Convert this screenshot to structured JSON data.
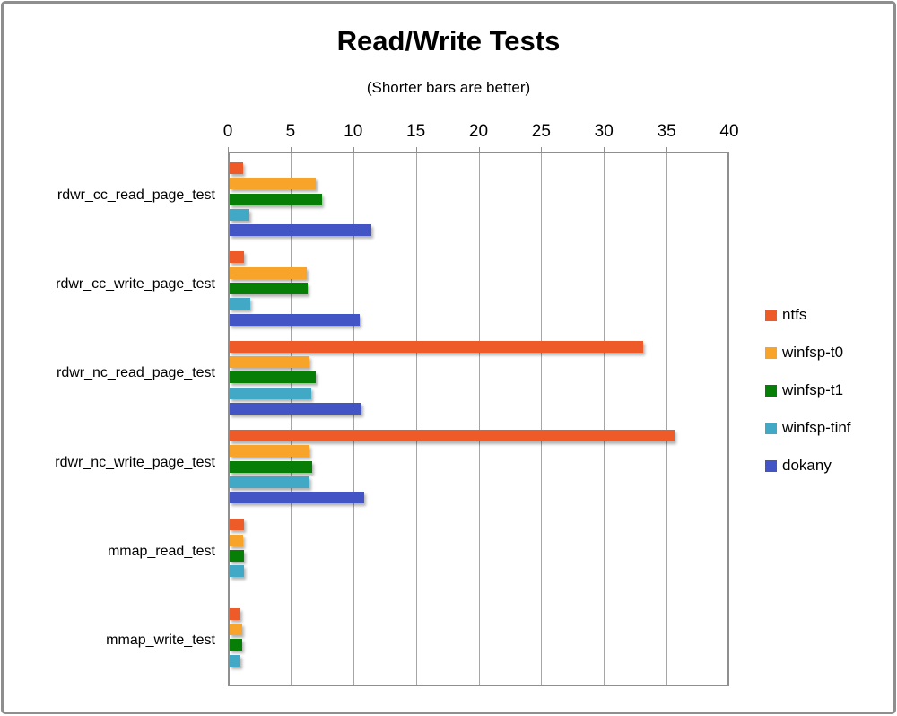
{
  "chart_data": {
    "type": "bar",
    "orientation": "horizontal",
    "title": "Read/Write Tests",
    "subtitle": "(Shorter bars are better)",
    "axis": {
      "position": "top",
      "min": 0,
      "max": 40,
      "tick_labels": [
        "0",
        "5",
        "10",
        "15",
        "20",
        "25",
        "30",
        "35",
        "40"
      ],
      "tick_values": [
        0,
        5,
        10,
        15,
        20,
        25,
        30,
        35,
        40
      ],
      "grid": true
    },
    "categories": [
      "rdwr_cc_read_page_test",
      "rdwr_cc_write_page_test",
      "rdwr_nc_read_page_test",
      "rdwr_nc_write_page_test",
      "mmap_read_test",
      "mmap_write_test"
    ],
    "series": [
      {
        "name": "ntfs",
        "color": "#ef5b28",
        "values": [
          1.05,
          1.15,
          33.0,
          35.5,
          1.15,
          0.85
        ]
      },
      {
        "name": "winfsp-t0",
        "color": "#f8a42a",
        "values": [
          6.9,
          6.15,
          6.4,
          6.4,
          1.1,
          1.0
        ]
      },
      {
        "name": "winfsp-t1",
        "color": "#077f07",
        "values": [
          7.4,
          6.2,
          6.9,
          6.55,
          1.15,
          1.0
        ]
      },
      {
        "name": "winfsp-tinf",
        "color": "#41a8c5",
        "values": [
          1.55,
          1.65,
          6.5,
          6.4,
          1.15,
          0.85
        ]
      },
      {
        "name": "dokany",
        "color": "#4355c5",
        "values": [
          11.3,
          10.4,
          10.5,
          10.7,
          0,
          0
        ]
      }
    ],
    "legend_position": "right",
    "colors": {
      "grid": "#a6a6a6",
      "plot_border": "#8f8f8f",
      "frame_border": "#8e8e8e",
      "text": "#000000"
    }
  }
}
